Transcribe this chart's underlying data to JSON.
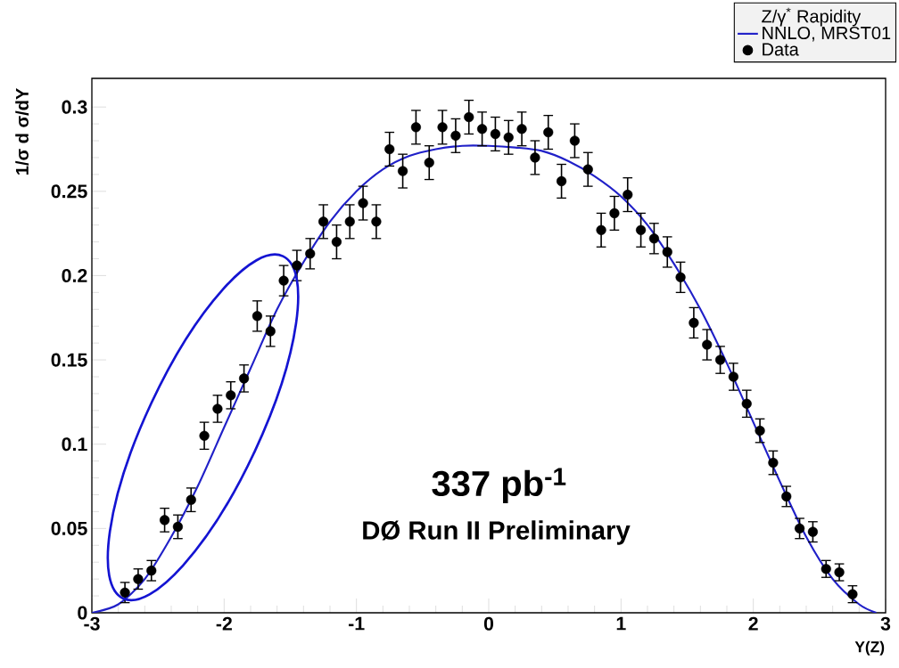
{
  "chart_data": {
    "type": "scatter",
    "xlabel": "Y(Z)",
    "ylabel": "1/σ  d σ/dY",
    "legend_title": "Z/γ$^{*}$ Rapidity",
    "legend": "top right",
    "grid": false,
    "marker": "circle",
    "xlim": [
      -3,
      3
    ],
    "ylim": [
      0,
      0.317
    ],
    "xticks": [
      -3,
      -2,
      -1,
      0,
      1,
      2,
      3
    ],
    "yticks": [
      0,
      {
        "value": 0.05,
        "label": "0.05"
      },
      {
        "value": 0.1,
        "label": "0.1"
      },
      {
        "value": 0.15,
        "label": "0.15"
      },
      {
        "value": 0.2,
        "label": "0.2"
      },
      {
        "value": 0.25,
        "label": "0.25"
      },
      {
        "value": 0.3,
        "label": "0.3"
      }
    ],
    "annotations": [
      "337 pb$^{-1}$",
      "DØ Run II Preliminary"
    ],
    "series": [
      {
        "name": "NNLO, MRST01",
        "type": "line",
        "marker": "none",
        "color": "#2020c8",
        "x": [
          -3,
          -2.8,
          -2.6,
          -2.4,
          -2.2,
          -2.0,
          -1.8,
          -1.6,
          -1.4,
          -1.2,
          -1.0,
          -0.8,
          -0.6,
          -0.4,
          -0.2,
          0,
          0.2,
          0.4,
          0.6,
          0.8,
          1.0,
          1.2,
          1.4,
          1.6,
          1.8,
          2.0,
          2.2,
          2.4,
          2.6,
          2.8,
          2.93
        ],
        "values": [
          0.0,
          0.005,
          0.02,
          0.045,
          0.075,
          0.11,
          0.145,
          0.18,
          0.208,
          0.232,
          0.25,
          0.263,
          0.271,
          0.275,
          0.277,
          0.277,
          0.276,
          0.274,
          0.268,
          0.259,
          0.247,
          0.23,
          0.207,
          0.18,
          0.148,
          0.113,
          0.078,
          0.045,
          0.02,
          0.005,
          0.0
        ]
      },
      {
        "name": "Data",
        "type": "scatter",
        "color": "#000000",
        "x": [
          -2.75,
          -2.65,
          -2.55,
          -2.45,
          -2.35,
          -2.25,
          -2.15,
          -2.05,
          -1.95,
          -1.85,
          -1.75,
          -1.65,
          -1.55,
          -1.45,
          -1.35,
          -1.25,
          -1.15,
          -1.05,
          -0.95,
          -0.85,
          -0.75,
          -0.65,
          -0.55,
          -0.45,
          -0.35,
          -0.25,
          -0.15,
          -0.05,
          0.05,
          0.15,
          0.25,
          0.35,
          0.45,
          0.55,
          0.65,
          0.75,
          0.85,
          0.95,
          1.05,
          1.15,
          1.25,
          1.35,
          1.45,
          1.55,
          1.65,
          1.75,
          1.85,
          1.95,
          2.05,
          2.15,
          2.25,
          2.35,
          2.45,
          2.55,
          2.65,
          2.75
        ],
        "values": [
          0.012,
          0.02,
          0.025,
          0.055,
          0.051,
          0.067,
          0.105,
          0.121,
          0.129,
          0.139,
          0.176,
          0.167,
          0.197,
          0.206,
          0.213,
          0.232,
          0.22,
          0.232,
          0.243,
          0.232,
          0.275,
          0.262,
          0.288,
          0.267,
          0.288,
          0.283,
          0.294,
          0.287,
          0.284,
          0.282,
          0.287,
          0.27,
          0.285,
          0.256,
          0.28,
          0.263,
          0.227,
          0.237,
          0.248,
          0.227,
          0.222,
          0.214,
          0.199,
          0.172,
          0.159,
          0.15,
          0.14,
          0.124,
          0.108,
          0.089,
          0.069,
          0.05,
          0.048,
          0.026,
          0.024,
          0.011
        ],
        "errors": [
          0.006,
          0.006,
          0.006,
          0.007,
          0.007,
          0.007,
          0.008,
          0.008,
          0.008,
          0.008,
          0.009,
          0.009,
          0.009,
          0.009,
          0.009,
          0.01,
          0.01,
          0.01,
          0.01,
          0.01,
          0.01,
          0.01,
          0.01,
          0.01,
          0.01,
          0.01,
          0.01,
          0.01,
          0.01,
          0.01,
          0.01,
          0.01,
          0.01,
          0.01,
          0.01,
          0.01,
          0.01,
          0.01,
          0.01,
          0.01,
          0.009,
          0.009,
          0.009,
          0.009,
          0.009,
          0.008,
          0.008,
          0.008,
          0.007,
          0.007,
          0.006,
          0.006,
          0.006,
          0.005,
          0.005,
          0.005
        ]
      }
    ]
  }
}
